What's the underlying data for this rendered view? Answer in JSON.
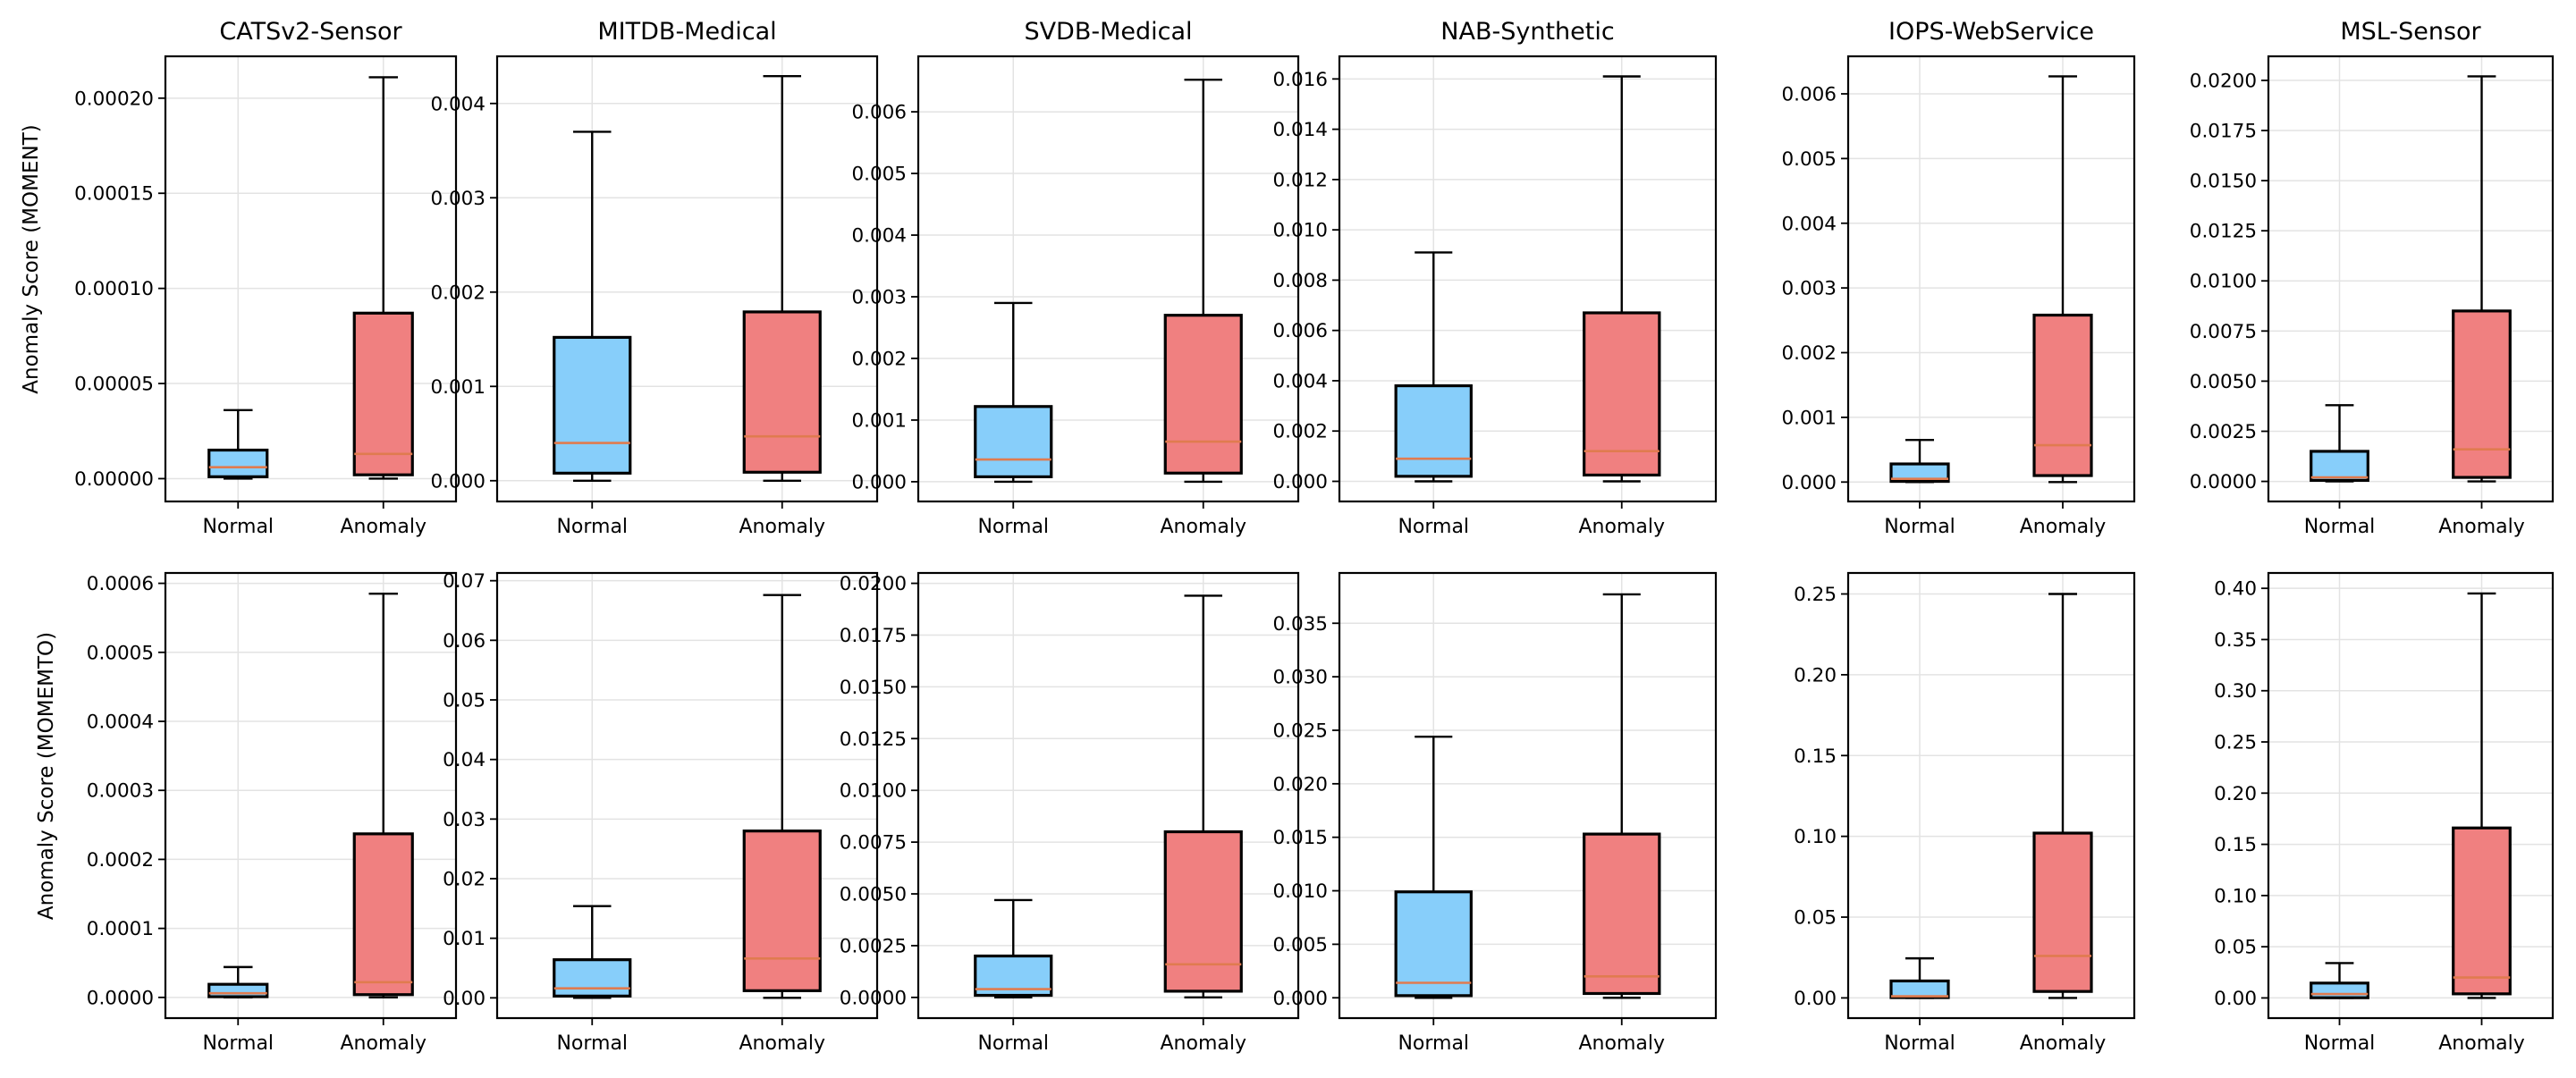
{
  "colors": {
    "normal": "#87cefa",
    "anomaly": "#f08080",
    "median": "#e07b4f"
  },
  "chart_data": {
    "type": "boxplot",
    "categories": [
      "Normal",
      "Anomaly"
    ],
    "y_labels": [
      "Anomaly Score (MOMENT)",
      "Anomaly Score (MOMEMTO)"
    ],
    "panels": [
      {
        "row": 0,
        "col": 0,
        "title": "CATSv2-Sensor",
        "ylim": [
          -1.2e-05,
          0.000222
        ],
        "ticks": [
          0,
          5e-05,
          0.0001,
          0.00015,
          0.0002
        ],
        "tick_labels": [
          "0.00000",
          "0.00005",
          "0.00010",
          "0.00015",
          "0.00020"
        ],
        "boxes": [
          {
            "category": "Normal",
            "whisker_low": 0,
            "q1": 1e-06,
            "median": 6e-06,
            "q3": 1.5e-05,
            "whisker_high": 3.6e-05
          },
          {
            "category": "Anomaly",
            "whisker_low": 0,
            "q1": 2e-06,
            "median": 1.3e-05,
            "q3": 8.7e-05,
            "whisker_high": 0.000211
          }
        ]
      },
      {
        "row": 0,
        "col": 1,
        "title": "MITDB-Medical",
        "ylim": [
          -0.00022,
          0.0045
        ],
        "ticks": [
          0,
          0.001,
          0.002,
          0.003,
          0.004
        ],
        "tick_labels": [
          "0.000",
          "0.001",
          "0.002",
          "0.003",
          "0.004"
        ],
        "boxes": [
          {
            "category": "Normal",
            "whisker_low": 0,
            "q1": 8e-05,
            "median": 0.0004,
            "q3": 0.00152,
            "whisker_high": 0.0037
          },
          {
            "category": "Anomaly",
            "whisker_low": 0,
            "q1": 9e-05,
            "median": 0.00047,
            "q3": 0.00179,
            "whisker_high": 0.00429
          }
        ]
      },
      {
        "row": 0,
        "col": 2,
        "title": "SVDB-Medical",
        "ylim": [
          -0.00032,
          0.0069
        ],
        "ticks": [
          0,
          0.001,
          0.002,
          0.003,
          0.004,
          0.005,
          0.006
        ],
        "tick_labels": [
          "0.000",
          "0.001",
          "0.002",
          "0.003",
          "0.004",
          "0.005",
          "0.006"
        ],
        "boxes": [
          {
            "category": "Normal",
            "whisker_low": 0,
            "q1": 8e-05,
            "median": 0.00036,
            "q3": 0.00122,
            "whisker_high": 0.0029
          },
          {
            "category": "Anomaly",
            "whisker_low": 0,
            "q1": 0.00014,
            "median": 0.00065,
            "q3": 0.0027,
            "whisker_high": 0.00652
          }
        ]
      },
      {
        "row": 0,
        "col": 3,
        "title": "NAB-Synthetic",
        "ylim": [
          -0.0008,
          0.0169
        ],
        "ticks": [
          0,
          0.002,
          0.004,
          0.006,
          0.008,
          0.01,
          0.012,
          0.014,
          0.016
        ],
        "tick_labels": [
          "0.000",
          "0.002",
          "0.004",
          "0.006",
          "0.008",
          "0.010",
          "0.012",
          "0.014",
          "0.016"
        ],
        "boxes": [
          {
            "category": "Normal",
            "whisker_low": 0,
            "q1": 0.0002,
            "median": 0.0009,
            "q3": 0.0038,
            "whisker_high": 0.0091
          },
          {
            "category": "Anomaly",
            "whisker_low": 0,
            "q1": 0.00025,
            "median": 0.0012,
            "q3": 0.0067,
            "whisker_high": 0.0161
          }
        ]
      },
      {
        "row": 0,
        "col": 4,
        "title": "IOPS-WebService",
        "ylim": [
          -0.0003,
          0.00658
        ],
        "ticks": [
          0,
          0.001,
          0.002,
          0.003,
          0.004,
          0.005,
          0.006
        ],
        "tick_labels": [
          "0.000",
          "0.001",
          "0.002",
          "0.003",
          "0.004",
          "0.005",
          "0.006"
        ],
        "boxes": [
          {
            "category": "Normal",
            "whisker_low": 0,
            "q1": 1e-05,
            "median": 5e-05,
            "q3": 0.00028,
            "whisker_high": 0.00065
          },
          {
            "category": "Anomaly",
            "whisker_low": 0,
            "q1": 0.0001,
            "median": 0.00057,
            "q3": 0.00258,
            "whisker_high": 0.00627
          }
        ]
      },
      {
        "row": 0,
        "col": 5,
        "title": "MSL-Sensor",
        "ylim": [
          -0.001,
          0.0212
        ],
        "ticks": [
          0,
          0.0025,
          0.005,
          0.0075,
          0.01,
          0.0125,
          0.015,
          0.0175,
          0.02
        ],
        "tick_labels": [
          "0.0000",
          "0.0025",
          "0.0050",
          "0.0075",
          "0.0100",
          "0.0125",
          "0.0150",
          "0.0175",
          "0.0200"
        ],
        "boxes": [
          {
            "category": "Normal",
            "whisker_low": 0,
            "q1": 5e-05,
            "median": 0.0002,
            "q3": 0.0015,
            "whisker_high": 0.0038
          },
          {
            "category": "Anomaly",
            "whisker_low": 0,
            "q1": 0.0002,
            "median": 0.0016,
            "q3": 0.0085,
            "whisker_high": 0.0202
          }
        ]
      },
      {
        "row": 1,
        "col": 0,
        "title": "",
        "ylim": [
          -3e-05,
          0.000615
        ],
        "ticks": [
          0,
          0.0001,
          0.0002,
          0.0003,
          0.0004,
          0.0005,
          0.0006
        ],
        "tick_labels": [
          "0.0000",
          "0.0001",
          "0.0002",
          "0.0003",
          "0.0004",
          "0.0005",
          "0.0006"
        ],
        "boxes": [
          {
            "category": "Normal",
            "whisker_low": 0,
            "q1": 1e-06,
            "median": 6e-06,
            "q3": 1.9e-05,
            "whisker_high": 4.4e-05
          },
          {
            "category": "Anomaly",
            "whisker_low": 0,
            "q1": 4e-06,
            "median": 2.2e-05,
            "q3": 0.000237,
            "whisker_high": 0.000585
          }
        ]
      },
      {
        "row": 1,
        "col": 1,
        "title": "",
        "ylim": [
          -0.0034,
          0.0713
        ],
        "ticks": [
          0,
          0.01,
          0.02,
          0.03,
          0.04,
          0.05,
          0.06,
          0.07
        ],
        "tick_labels": [
          "0.00",
          "0.01",
          "0.02",
          "0.03",
          "0.04",
          "0.05",
          "0.06",
          "0.07"
        ],
        "boxes": [
          {
            "category": "Normal",
            "whisker_low": 0,
            "q1": 0.0003,
            "median": 0.0016,
            "q3": 0.0064,
            "whisker_high": 0.0154
          },
          {
            "category": "Anomaly",
            "whisker_low": 0,
            "q1": 0.0012,
            "median": 0.0066,
            "q3": 0.028,
            "whisker_high": 0.0676
          }
        ]
      },
      {
        "row": 1,
        "col": 2,
        "title": "",
        "ylim": [
          -0.001,
          0.0205
        ],
        "ticks": [
          0,
          0.0025,
          0.005,
          0.0075,
          0.01,
          0.0125,
          0.015,
          0.0175,
          0.02
        ],
        "tick_labels": [
          "0.0000",
          "0.0025",
          "0.0050",
          "0.0075",
          "0.0100",
          "0.0125",
          "0.0150",
          "0.0175",
          "0.0200"
        ],
        "boxes": [
          {
            "category": "Normal",
            "whisker_low": 0,
            "q1": 0.0001,
            "median": 0.0004,
            "q3": 0.002,
            "whisker_high": 0.0047
          },
          {
            "category": "Anomaly",
            "whisker_low": 0,
            "q1": 0.0003,
            "median": 0.0016,
            "q3": 0.008,
            "whisker_high": 0.0194
          }
        ]
      },
      {
        "row": 1,
        "col": 3,
        "title": "",
        "ylim": [
          -0.0019,
          0.0397
        ],
        "ticks": [
          0,
          0.005,
          0.01,
          0.015,
          0.02,
          0.025,
          0.03,
          0.035
        ],
        "tick_labels": [
          "0.000",
          "0.005",
          "0.010",
          "0.015",
          "0.020",
          "0.025",
          "0.030",
          "0.035"
        ],
        "boxes": [
          {
            "category": "Normal",
            "whisker_low": 0,
            "q1": 0.0002,
            "median": 0.0014,
            "q3": 0.0099,
            "whisker_high": 0.0244
          },
          {
            "category": "Anomaly",
            "whisker_low": 0,
            "q1": 0.0004,
            "median": 0.002,
            "q3": 0.0153,
            "whisker_high": 0.0377
          }
        ]
      },
      {
        "row": 1,
        "col": 4,
        "title": "",
        "ylim": [
          -0.0125,
          0.263
        ],
        "ticks": [
          0,
          0.05,
          0.1,
          0.15,
          0.2,
          0.25
        ],
        "tick_labels": [
          "0.00",
          "0.05",
          "0.10",
          "0.15",
          "0.20",
          "0.25"
        ],
        "boxes": [
          {
            "category": "Normal",
            "whisker_low": 0,
            "q1": 0.0002,
            "median": 0.001,
            "q3": 0.0105,
            "whisker_high": 0.0245
          },
          {
            "category": "Anomaly",
            "whisker_low": 0,
            "q1": 0.004,
            "median": 0.026,
            "q3": 0.102,
            "whisker_high": 0.25
          }
        ]
      },
      {
        "row": 1,
        "col": 5,
        "title": "",
        "ylim": [
          -0.0197,
          0.415
        ],
        "ticks": [
          0,
          0.05,
          0.1,
          0.15,
          0.2,
          0.25,
          0.3,
          0.35,
          0.4
        ],
        "tick_labels": [
          "0.00",
          "0.05",
          "0.10",
          "0.15",
          "0.20",
          "0.25",
          "0.30",
          "0.35",
          "0.40"
        ],
        "boxes": [
          {
            "category": "Normal",
            "whisker_low": 0,
            "q1": 0.0002,
            "median": 0.0038,
            "q3": 0.0145,
            "whisker_high": 0.034
          },
          {
            "category": "Anomaly",
            "whisker_low": 0,
            "q1": 0.004,
            "median": 0.02,
            "q3": 0.166,
            "whisker_high": 0.395
          }
        ]
      }
    ]
  }
}
